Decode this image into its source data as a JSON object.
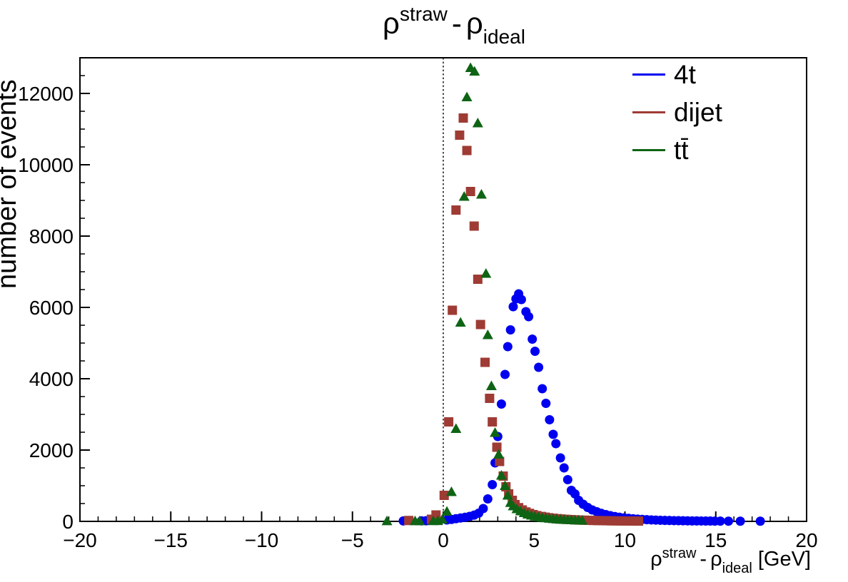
{
  "chart_data": {
    "type": "scatter",
    "title": "ρ^straw - ρ_ideal",
    "title_parts": {
      "sym1": "ρ",
      "sup": "straw",
      "sep": "-",
      "sym2": "ρ",
      "sub": "ideal"
    },
    "xlabel": "ρ^straw - ρ_ideal [GeV]",
    "xlabel_parts": {
      "sym1": "ρ",
      "sup": "straw",
      "sep": "-",
      "sym2": "ρ",
      "sub": "ideal",
      "units": "[GeV]"
    },
    "ylabel": "number of events",
    "xlim": [
      -20,
      20
    ],
    "ylim": [
      0,
      13000
    ],
    "x_major_ticks": [
      -20,
      -15,
      -10,
      -5,
      0,
      5,
      10,
      15,
      20
    ],
    "x_tick_labels": [
      "−20",
      "−15",
      "−10",
      "−5",
      "0",
      "5",
      "10",
      "15",
      "20"
    ],
    "x_minor_step": 1,
    "y_major_ticks": [
      0,
      2000,
      4000,
      6000,
      8000,
      10000,
      12000
    ],
    "y_tick_labels": [
      "0",
      "2000",
      "4000",
      "6000",
      "8000",
      "10000",
      "12000"
    ],
    "y_minor_step": 500,
    "grid": false,
    "reference_line_x": 0,
    "legend_position": "top-right",
    "frame_color": "#000000",
    "series": [
      {
        "name": "4t",
        "color": "#0000f0",
        "marker": "circle",
        "points": [
          [
            -2.2,
            12
          ],
          [
            -1.2,
            15
          ],
          [
            -0.95,
            18
          ],
          [
            0.2,
            40
          ],
          [
            0.45,
            55
          ],
          [
            0.7,
            75
          ],
          [
            0.95,
            95
          ],
          [
            1.2,
            115
          ],
          [
            1.45,
            140
          ],
          [
            1.7,
            175
          ],
          [
            1.95,
            230
          ],
          [
            2.2,
            360
          ],
          [
            2.45,
            630
          ],
          [
            2.7,
            1030
          ],
          [
            2.85,
            1640
          ],
          [
            3.0,
            2380
          ],
          [
            3.2,
            3290
          ],
          [
            3.4,
            4120
          ],
          [
            3.55,
            4900
          ],
          [
            3.7,
            5370
          ],
          [
            3.85,
            6020
          ],
          [
            4.0,
            6240
          ],
          [
            4.15,
            6380
          ],
          [
            4.3,
            6220
          ],
          [
            4.55,
            5880
          ],
          [
            4.7,
            5740
          ],
          [
            4.9,
            5110
          ],
          [
            5.05,
            4770
          ],
          [
            5.25,
            4320
          ],
          [
            5.45,
            3720
          ],
          [
            5.65,
            3310
          ],
          [
            5.85,
            2850
          ],
          [
            6.05,
            2440
          ],
          [
            6.2,
            2180
          ],
          [
            6.45,
            1780
          ],
          [
            6.65,
            1500
          ],
          [
            6.85,
            1170
          ],
          [
            7.05,
            870
          ],
          [
            7.25,
            770
          ],
          [
            7.45,
            590
          ],
          [
            7.7,
            480
          ],
          [
            7.95,
            390
          ],
          [
            8.2,
            320
          ],
          [
            8.45,
            270
          ],
          [
            8.7,
            225
          ],
          [
            8.95,
            190
          ],
          [
            9.2,
            160
          ],
          [
            9.45,
            135
          ],
          [
            9.7,
            115
          ],
          [
            9.95,
            98
          ],
          [
            10.2,
            84
          ],
          [
            10.45,
            72
          ],
          [
            10.7,
            62
          ],
          [
            10.95,
            54
          ],
          [
            11.2,
            47
          ],
          [
            11.45,
            41
          ],
          [
            11.7,
            36
          ],
          [
            11.95,
            31
          ],
          [
            12.2,
            27
          ],
          [
            12.45,
            24
          ],
          [
            12.7,
            21
          ],
          [
            12.95,
            19
          ],
          [
            13.2,
            17
          ],
          [
            13.45,
            15
          ],
          [
            13.7,
            13
          ],
          [
            13.95,
            12
          ],
          [
            14.2,
            11
          ],
          [
            14.45,
            10
          ],
          [
            14.7,
            9
          ],
          [
            14.95,
            8
          ],
          [
            15.25,
            7
          ],
          [
            15.7,
            6
          ],
          [
            16.35,
            5
          ],
          [
            17.45,
            5
          ]
        ]
      },
      {
        "name": "dijet",
        "color": "#9e3b34",
        "marker": "square",
        "points": [
          [
            -1.9,
            25
          ],
          [
            -0.65,
            60
          ],
          [
            -0.4,
            180
          ],
          [
            0.05,
            730
          ],
          [
            0.3,
            2790
          ],
          [
            0.5,
            5920
          ],
          [
            0.7,
            8730
          ],
          [
            0.9,
            10830
          ],
          [
            1.1,
            11310
          ],
          [
            1.3,
            10400
          ],
          [
            1.5,
            9250
          ],
          [
            1.7,
            8280
          ],
          [
            1.9,
            6790
          ],
          [
            2.05,
            5520
          ],
          [
            2.3,
            4460
          ],
          [
            2.55,
            3450
          ],
          [
            2.7,
            2790
          ],
          [
            2.95,
            2080
          ],
          [
            3.1,
            1680
          ],
          [
            3.3,
            1270
          ],
          [
            3.45,
            970
          ],
          [
            3.6,
            770
          ],
          [
            3.8,
            590
          ],
          [
            3.95,
            470
          ],
          [
            4.15,
            385
          ],
          [
            4.35,
            320
          ],
          [
            4.55,
            265
          ],
          [
            4.75,
            225
          ],
          [
            4.95,
            190
          ],
          [
            5.15,
            162
          ],
          [
            5.4,
            138
          ],
          [
            5.6,
            118
          ],
          [
            5.8,
            102
          ],
          [
            6.05,
            88
          ],
          [
            6.3,
            76
          ],
          [
            6.5,
            66
          ],
          [
            6.75,
            57
          ],
          [
            7.0,
            50
          ],
          [
            7.25,
            44
          ],
          [
            7.5,
            38
          ],
          [
            7.75,
            34
          ],
          [
            8.0,
            30
          ],
          [
            8.25,
            26
          ],
          [
            8.5,
            23
          ],
          [
            8.75,
            20
          ],
          [
            9.0,
            18
          ],
          [
            9.25,
            16
          ],
          [
            9.5,
            14
          ],
          [
            9.75,
            13
          ],
          [
            10.0,
            11
          ],
          [
            10.25,
            10
          ],
          [
            10.5,
            9
          ],
          [
            10.75,
            8
          ]
        ]
      },
      {
        "name": "tt̄",
        "color": "#0e6414",
        "marker": "triangle",
        "points": [
          [
            -3.1,
            12
          ],
          [
            -1.55,
            12
          ],
          [
            -1.3,
            12
          ],
          [
            -0.55,
            14
          ],
          [
            -0.3,
            18
          ],
          [
            -0.05,
            60
          ],
          [
            0.2,
            280
          ],
          [
            0.45,
            830
          ],
          [
            0.7,
            2600
          ],
          [
            0.95,
            5580
          ],
          [
            1.15,
            9110
          ],
          [
            1.3,
            11900
          ],
          [
            1.5,
            12720
          ],
          [
            1.72,
            12620
          ],
          [
            1.9,
            11170
          ],
          [
            2.1,
            9170
          ],
          [
            2.35,
            6950
          ],
          [
            2.45,
            5230
          ],
          [
            2.65,
            3800
          ],
          [
            2.85,
            2490
          ],
          [
            3.05,
            1880
          ],
          [
            3.2,
            1290
          ],
          [
            3.4,
            1000
          ],
          [
            3.55,
            730
          ],
          [
            3.7,
            525
          ],
          [
            3.85,
            430
          ],
          [
            4.05,
            350
          ],
          [
            4.25,
            290
          ],
          [
            4.45,
            240
          ],
          [
            4.65,
            200
          ],
          [
            4.85,
            170
          ],
          [
            5.05,
            145
          ],
          [
            5.25,
            125
          ],
          [
            5.45,
            108
          ],
          [
            5.65,
            94
          ],
          [
            5.85,
            82
          ],
          [
            6.05,
            72
          ],
          [
            6.25,
            63
          ],
          [
            6.45,
            56
          ],
          [
            6.65,
            49
          ],
          [
            6.85,
            44
          ],
          [
            7.05,
            39
          ],
          [
            7.25,
            35
          ],
          [
            7.45,
            31
          ],
          [
            7.65,
            28
          ]
        ]
      }
    ]
  }
}
